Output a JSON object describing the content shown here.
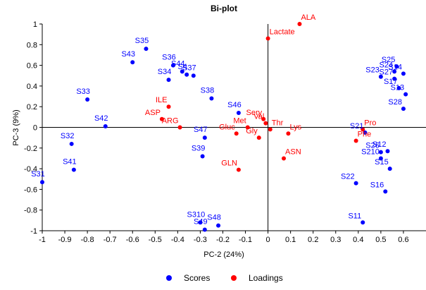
{
  "chart_data": {
    "type": "scatter",
    "title": "Bi-plot",
    "xlabel": "PC-2 (24%)",
    "ylabel": "PC-3 (9%)",
    "xlim": [
      -1,
      0.7
    ],
    "ylim": [
      -1,
      1
    ],
    "x_ticks": [
      "-1",
      "-0.9",
      "-0.8",
      "-0.7",
      "-0.6",
      "-0.5",
      "-0.4",
      "-0.3",
      "-0.2",
      "-0.1",
      "0",
      "0.1",
      "0.2",
      "0.3",
      "0.4",
      "0.5",
      "0.6"
    ],
    "y_ticks": [
      "1",
      "0.8",
      "0.6",
      "0.4",
      "0.2",
      "0",
      "-0.2",
      "-0.4",
      "-0.6",
      "-0.8",
      "-1"
    ],
    "grid": false,
    "legend_position": "bottom",
    "series": [
      {
        "name": "Scores",
        "color": "#0000ff",
        "points": [
          {
            "label": "S31",
            "x": -1.0,
            "y": -0.53
          },
          {
            "label": "S32",
            "x": -0.87,
            "y": -0.16
          },
          {
            "label": "S41",
            "x": -0.86,
            "y": -0.41
          },
          {
            "label": "S33",
            "x": -0.8,
            "y": 0.27
          },
          {
            "label": "S42",
            "x": -0.72,
            "y": 0.01
          },
          {
            "label": "S43",
            "x": -0.6,
            "y": 0.63
          },
          {
            "label": "S35",
            "x": -0.54,
            "y": 0.76
          },
          {
            "label": "S36",
            "x": -0.42,
            "y": 0.6
          },
          {
            "label": "S44",
            "x": -0.38,
            "y": 0.54
          },
          {
            "label": "S4",
            "x": -0.36,
            "y": 0.51
          },
          {
            "label": "S37",
            "x": -0.33,
            "y": 0.5
          },
          {
            "label": "S34",
            "x": -0.44,
            "y": 0.46
          },
          {
            "label": "S38",
            "x": -0.25,
            "y": 0.28
          },
          {
            "label": "S46",
            "x": -0.13,
            "y": 0.14
          },
          {
            "label": "S47",
            "x": -0.28,
            "y": -0.1
          },
          {
            "label": "S39",
            "x": -0.29,
            "y": -0.28
          },
          {
            "label": "S310",
            "x": -0.3,
            "y": -0.92
          },
          {
            "label": "S49",
            "x": -0.28,
            "y": -0.99
          },
          {
            "label": "S48",
            "x": -0.22,
            "y": -0.95
          },
          {
            "label": "S25",
            "x": 0.57,
            "y": 0.59
          },
          {
            "label": "S24",
            "x": 0.56,
            "y": 0.54
          },
          {
            "label": "S23",
            "x": 0.5,
            "y": 0.49
          },
          {
            "label": "S14",
            "x": 0.6,
            "y": 0.52
          },
          {
            "label": "S27",
            "x": 0.56,
            "y": 0.47
          },
          {
            "label": "S17",
            "x": 0.58,
            "y": 0.38
          },
          {
            "label": "S13",
            "x": 0.61,
            "y": 0.32
          },
          {
            "label": "S28",
            "x": 0.6,
            "y": 0.18
          },
          {
            "label": "S21",
            "x": 0.43,
            "y": -0.05
          },
          {
            "label": "S26",
            "x": 0.5,
            "y": -0.24
          },
          {
            "label": "S12",
            "x": 0.53,
            "y": -0.23
          },
          {
            "label": "S210",
            "x": 0.5,
            "y": -0.3
          },
          {
            "label": "S15",
            "x": 0.54,
            "y": -0.4
          },
          {
            "label": "S22",
            "x": 0.39,
            "y": -0.54
          },
          {
            "label": "S16",
            "x": 0.52,
            "y": -0.62
          },
          {
            "label": "S11",
            "x": 0.42,
            "y": -0.92
          }
        ]
      },
      {
        "name": "Loadings",
        "color": "#ff0000",
        "points": [
          {
            "label": "ALA",
            "x": 0.14,
            "y": 1.0
          },
          {
            "label": "Lactate",
            "x": 0.0,
            "y": 0.86
          },
          {
            "label": "ILE",
            "x": -0.44,
            "y": 0.2
          },
          {
            "label": "ASP",
            "x": -0.47,
            "y": 0.08
          },
          {
            "label": "ARG",
            "x": -0.39,
            "y": 0.0
          },
          {
            "label": "Sery",
            "x": -0.02,
            "y": 0.08
          },
          {
            "label": "Met",
            "x": -0.09,
            "y": 0.0
          },
          {
            "label": "Val",
            "x": -0.01,
            "y": 0.04
          },
          {
            "label": "Gluc",
            "x": -0.14,
            "y": -0.06
          },
          {
            "label": "Thr",
            "x": 0.01,
            "y": -0.02
          },
          {
            "label": "Lys",
            "x": 0.09,
            "y": -0.06
          },
          {
            "label": "Gly",
            "x": -0.04,
            "y": -0.1
          },
          {
            "label": "GLN",
            "x": -0.13,
            "y": -0.41
          },
          {
            "label": "ASN",
            "x": 0.07,
            "y": -0.3
          },
          {
            "label": "Pro",
            "x": 0.42,
            "y": -0.02
          },
          {
            "label": "Phe",
            "x": 0.39,
            "y": -0.13
          }
        ]
      }
    ]
  }
}
